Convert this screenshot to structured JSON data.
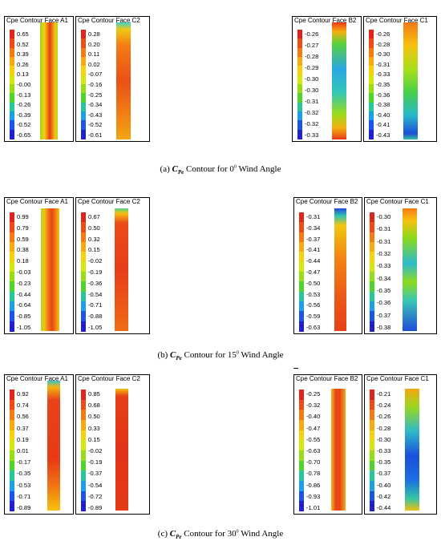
{
  "captions": [
    {
      "label": "(a)",
      "symbol": "C",
      "subscript": "Pe",
      "text_before": "Contour for 0",
      "sup": "0",
      "text_after": "Wind Angle"
    },
    {
      "label": "(b)",
      "symbol": "C",
      "subscript": "Pe",
      "text_before": "Contour for 15",
      "sup": "0",
      "text_after": "Wind Angle"
    },
    {
      "label": "(c)",
      "symbol": "C",
      "subscript": "Pe",
      "text_before": "Contour for 30",
      "sup": "0",
      "text_after": "Wind Angle"
    }
  ],
  "panels": [
    {
      "title": "Cpe Contour Face A1",
      "ticks": [
        "0.65",
        "0.52",
        "0.39",
        "0.26",
        "0.13",
        "-0.00",
        "-0.13",
        "-0.26",
        "-0.39",
        "-0.52",
        "-0.65"
      ]
    },
    {
      "title": "Cpe Contour Face C2",
      "ticks": [
        "0.28",
        "0.20",
        "0.11",
        "0.02",
        "-0.07",
        "-0.16",
        "-0.25",
        "-0.34",
        "-0.43",
        "-0.52",
        "-0.61"
      ]
    },
    {
      "title": "Cpe Contour Face B2",
      "ticks": [
        "-0.26",
        "-0.27",
        "-0.28",
        "-0.29",
        "-0.30",
        "-0.30",
        "-0.31",
        "-0.32",
        "-0.32",
        "-0.33"
      ]
    },
    {
      "title": "Cpe Contour Face C1",
      "ticks": [
        "-0.26",
        "-0.28",
        "-0.30",
        "-0.31",
        "-0.33",
        "-0.35",
        "-0.36",
        "-0.38",
        "-0.40",
        "-0.41",
        "-0.43"
      ]
    },
    {
      "title": "Cpe Contour Face A1",
      "ticks": [
        "0.99",
        "0.79",
        "0.59",
        "0.38",
        "0.18",
        "-0.03",
        "-0.23",
        "-0.44",
        "-0.64",
        "-0.85",
        "-1.05"
      ]
    },
    {
      "title": "Cpe Contour Face C2",
      "ticks": [
        "0.67",
        "0.50",
        "0.32",
        "0.15",
        "-0.02",
        "-0.19",
        "-0.36",
        "-0.54",
        "-0.71",
        "-0.88",
        "-1.05"
      ]
    },
    {
      "title": "Cpe Contour Face B2",
      "ticks": [
        "-0.31",
        "-0.34",
        "-0.37",
        "-0.41",
        "-0.44",
        "-0.47",
        "-0.50",
        "-0.53",
        "-0.56",
        "-0.59",
        "-0.63"
      ]
    },
    {
      "title": "Cpe Contour Face C1",
      "ticks": [
        "-0.30",
        "-0.31",
        "-0.31",
        "-0.32",
        "-0.33",
        "-0.34",
        "-0.35",
        "-0.36",
        "-0.37",
        "-0.38"
      ]
    },
    {
      "title": "Cpe Contour Face A1",
      "ticks": [
        "0.92",
        "0.74",
        "0.56",
        "0.37",
        "0.19",
        "0.01",
        "-0.17",
        "-0.35",
        "-0.53",
        "-0.71",
        "-0.89"
      ]
    },
    {
      "title": "Cpe Contour Face C2",
      "ticks": [
        "0.85",
        "0.68",
        "0.50",
        "0.33",
        "0.15",
        "-0.02",
        "-0.19",
        "-0.37",
        "-0.54",
        "-0.72",
        "-0.89"
      ]
    },
    {
      "title": "Cpe Contour Face B2",
      "ticks": [
        "-0.25",
        "-0.32",
        "-0.40",
        "-0.47",
        "-0.55",
        "-0.63",
        "-0.70",
        "-0.78",
        "-0.86",
        "-0.93",
        "-1.01"
      ]
    },
    {
      "title": "Cpe Contour Face C1",
      "ticks": [
        "-0.21",
        "-0.24",
        "-0.26",
        "-0.28",
        "-0.30",
        "-0.33",
        "-0.35",
        "-0.37",
        "-0.40",
        "-0.42",
        "-0.44"
      ]
    }
  ],
  "colorbar": [
    "#e0231b",
    "#f04a16",
    "#f57a12",
    "#f9a90f",
    "#f6d20d",
    "#d6e60f",
    "#97df14",
    "#4fd42b",
    "#27c79a",
    "#1c9fe6",
    "#1a55e8",
    "#2020d0"
  ]
}
